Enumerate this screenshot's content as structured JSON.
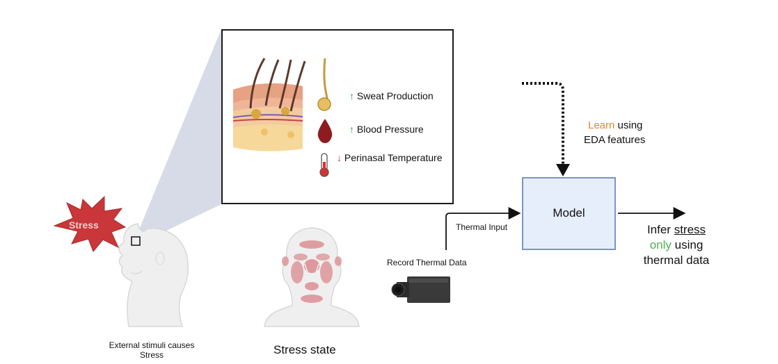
{
  "stress_burst": {
    "label": "Stress",
    "color": "#c9373a"
  },
  "zoom_panel": {
    "items": [
      {
        "arrow": "↑",
        "direction": "up",
        "label": "Sweat Production",
        "icon": "sweat-gland-icon"
      },
      {
        "arrow": "↑",
        "direction": "up",
        "label": "Blood Pressure",
        "icon": "blood-drop-icon"
      },
      {
        "arrow": "↓",
        "direction": "down",
        "label": "Perinasal Temperature",
        "icon": "thermometer-icon"
      }
    ]
  },
  "learn_note": {
    "highlight": "Learn",
    "rest": " using",
    "line2": "EDA features",
    "highlight_color": "#e8862a"
  },
  "model": {
    "label": "Model",
    "fill": "#e6eefb",
    "border": "#7d93c4"
  },
  "thermal_input_label": "Thermal Input",
  "record_label": "Record Thermal Data",
  "infer": {
    "word1": "Infer ",
    "word2": "stress",
    "only": "only",
    "rest": " using",
    "line3": "thermal data",
    "only_color": "#4caf50"
  },
  "captions": {
    "head_line1": "External stimuli causes",
    "head_line2": "Stress",
    "face": "Stress state"
  }
}
